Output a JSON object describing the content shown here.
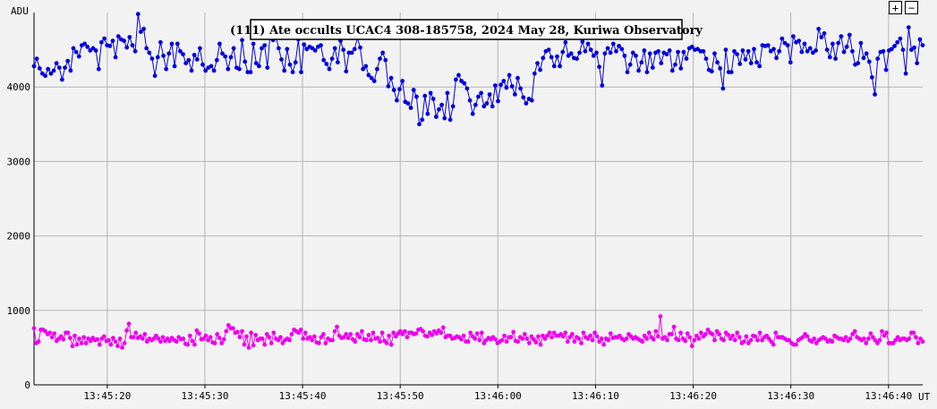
{
  "controls": {
    "zoom_in": "+",
    "zoom_out": "−"
  },
  "chart_data": {
    "type": "line",
    "title": "(111) Ate occults UCAC4 308-185758, 2024 May 28, Kuriwa Observatory",
    "ylabel": "ADU",
    "xlabel": "UT",
    "ylim": [
      0,
      5000
    ],
    "xlim": [
      "13:45:12.5",
      "13:46:43.5"
    ],
    "y_ticks": [
      0,
      1000,
      2000,
      3000,
      4000
    ],
    "x_ticks": [
      "13:45:20",
      "13:45:30",
      "13:45:40",
      "13:45:50",
      "13:46:00",
      "13:46:10",
      "13:46:20",
      "13:46:30",
      "13:46:40"
    ],
    "grid": true,
    "sample_interval_seconds": 0.25,
    "series": [
      {
        "color": "#0000dd",
        "values": [
          4280,
          4380,
          4250,
          4180,
          4150,
          4240,
          4180,
          4220,
          4320,
          4260,
          4100,
          4260,
          4350,
          4220,
          4520,
          4470,
          4410,
          4560,
          4580,
          4540,
          4490,
          4520,
          4490,
          4240,
          4600,
          4650,
          4560,
          4550,
          4620,
          4400,
          4680,
          4640,
          4620,
          4530,
          4670,
          4560,
          4480,
          4980,
          4740,
          4780,
          4520,
          4460,
          4380,
          4150,
          4400,
          4600,
          4420,
          4240,
          4450,
          4580,
          4280,
          4580,
          4480,
          4440,
          4320,
          4360,
          4220,
          4430,
          4370,
          4520,
          4300,
          4220,
          4260,
          4280,
          4220,
          4360,
          4580,
          4450,
          4410,
          4240,
          4400,
          4520,
          4260,
          4240,
          4630,
          4340,
          4200,
          4200,
          4580,
          4320,
          4280,
          4520,
          4560,
          4260,
          4740,
          4630,
          4680,
          4520,
          4370,
          4220,
          4510,
          4300,
          4200,
          4330,
          4640,
          4200,
          4570,
          4510,
          4540,
          4520,
          4490,
          4540,
          4560,
          4360,
          4310,
          4240,
          4380,
          4520,
          4330,
          4620,
          4500,
          4210,
          4460,
          4460,
          4510,
          4660,
          4530,
          4240,
          4280,
          4160,
          4120,
          4080,
          4240,
          4380,
          4460,
          4360,
          4010,
          4120,
          3960,
          3820,
          3970,
          4080,
          3800,
          3780,
          3720,
          3960,
          3870,
          3500,
          3560,
          3880,
          3640,
          3920,
          3840,
          3600,
          3700,
          3760,
          3580,
          3920,
          3560,
          3740,
          4100,
          4160,
          4080,
          4050,
          3980,
          3820,
          3640,
          3760,
          3870,
          3920,
          3740,
          3780,
          3900,
          3740,
          4020,
          3810,
          4030,
          4080,
          3990,
          4160,
          4010,
          3900,
          4120,
          3980,
          3860,
          3780,
          3840,
          3820,
          4180,
          4320,
          4230,
          4390,
          4480,
          4500,
          4400,
          4280,
          4410,
          4280,
          4470,
          4600,
          4420,
          4450,
          4390,
          4380,
          4460,
          4610,
          4480,
          4580,
          4500,
          4420,
          4460,
          4270,
          4020,
          4450,
          4520,
          4460,
          4580,
          4480,
          4550,
          4510,
          4420,
          4200,
          4300,
          4460,
          4420,
          4220,
          4330,
          4490,
          4200,
          4450,
          4260,
          4460,
          4480,
          4320,
          4460,
          4440,
          4490,
          4220,
          4300,
          4470,
          4250,
          4470,
          4380,
          4520,
          4540,
          4500,
          4510,
          4480,
          4480,
          4380,
          4230,
          4210,
          4450,
          4330,
          4250,
          3980,
          4500,
          4200,
          4200,
          4480,
          4440,
          4310,
          4490,
          4370,
          4480,
          4320,
          4510,
          4330,
          4280,
          4560,
          4550,
          4560,
          4480,
          4510,
          4390,
          4480,
          4650,
          4590,
          4560,
          4330,
          4680,
          4600,
          4620,
          4470,
          4580,
          4480,
          4520,
          4460,
          4490,
          4780,
          4670,
          4720,
          4500,
          4400,
          4580,
          4380,
          4590,
          4680,
          4470,
          4540,
          4700,
          4480,
          4300,
          4320,
          4590,
          4390,
          4450,
          4340,
          4130,
          3900,
          4380,
          4470,
          4480,
          4230,
          4490,
          4510,
          4550,
          4600,
          4650,
          4500,
          4180,
          4800,
          4500,
          4530,
          4320,
          4640,
          4560
        ]
      },
      {
        "color": "#ee00ee",
        "values": [
          760,
          560,
          580,
          740,
          740,
          720,
          680,
          700,
          640,
          690,
          590,
          620,
          650,
          610,
          700,
          700,
          630,
          520,
          660,
          540,
          620,
          560,
          640,
          560,
          620,
          590,
          630,
          600,
          610,
          540,
          620,
          650,
          590,
          600,
          540,
          630,
          580,
          520,
          620,
          500,
          560,
          730,
          820,
          640,
          640,
          700,
          630,
          650,
          620,
          680,
          580,
          620,
          600,
          620,
          660,
          620,
          580,
          640,
          590,
          620,
          590,
          630,
          600,
          580,
          640,
          610,
          620,
          550,
          540,
          660,
          590,
          540,
          730,
          690,
          610,
          620,
          660,
          600,
          640,
          570,
          560,
          680,
          630,
          560,
          610,
          720,
          800,
          760,
          760,
          700,
          710,
          640,
          720,
          540,
          650,
          500,
          700,
          530,
          670,
          600,
          620,
          620,
          540,
          680,
          640,
          560,
          700,
          620,
          600,
          640,
          560,
          600,
          620,
          600,
          680,
          740,
          720,
          700,
          740,
          620,
          700,
          620,
          640,
          600,
          650,
          570,
          560,
          640,
          680,
          560,
          620,
          600,
          600,
          720,
          780,
          660,
          630,
          640,
          680,
          630,
          680,
          610,
          580,
          680,
          640,
          720,
          610,
          600,
          670,
          600,
          700,
          620,
          630,
          580,
          700,
          590,
          560,
          660,
          540,
          700,
          650,
          690,
          720,
          680,
          720,
          640,
          700,
          700,
          680,
          690,
          740,
          750,
          720,
          660,
          650,
          700,
          670,
          720,
          690,
          730,
          700,
          770,
          640,
          660,
          660,
          620,
          630,
          650,
          640,
          610,
          660,
          580,
          580,
          700,
          650,
          620,
          690,
          600,
          700,
          560,
          600,
          630,
          610,
          640,
          610,
          560,
          580,
          600,
          660,
          580,
          640,
          640,
          710,
          590,
          580,
          640,
          620,
          680,
          620,
          560,
          650,
          610,
          570,
          650,
          540,
          660,
          620,
          660,
          700,
          640,
          700,
          660,
          660,
          680,
          650,
          700,
          580,
          640,
          680,
          580,
          640,
          620,
          560,
          700,
          640,
          620,
          660,
          600,
          700,
          650,
          580,
          620,
          540,
          620,
          600,
          690,
          630,
          640,
          640,
          660,
          620,
          600,
          620,
          680,
          650,
          620,
          640,
          620,
          600,
          580,
          660,
          620,
          700,
          640,
          610,
          720,
          650,
          920,
          620,
          640,
          600,
          680,
          680,
          780,
          620,
          600,
          700,
          620,
          590,
          690,
          640,
          520,
          600,
          660,
          620,
          700,
          650,
          680,
          740,
          700,
          680,
          600,
          720,
          680,
          620,
          600,
          700,
          670,
          620,
          660,
          600,
          700,
          640,
          560,
          580,
          650,
          560,
          600,
          660,
          650,
          600,
          700,
          600,
          640,
          660,
          620,
          580,
          540,
          700,
          640,
          640,
          640,
          620,
          600,
          600,
          560,
          540,
          540,
          600,
          620,
          640,
          680,
          650,
          600,
          580,
          620,
          560,
          600,
          620,
          640,
          620,
          580,
          600,
          580,
          660,
          640,
          620,
          620,
          600,
          640,
          590,
          620,
          680,
          720,
          640,
          620,
          600,
          620,
          560,
          620,
          690,
          640,
          600,
          560,
          600,
          720,
          660,
          700,
          560,
          560,
          560,
          600,
          640,
          600,
          620,
          620,
          600,
          620,
          700,
          700,
          640,
          560,
          620,
          580
        ]
      }
    ]
  }
}
